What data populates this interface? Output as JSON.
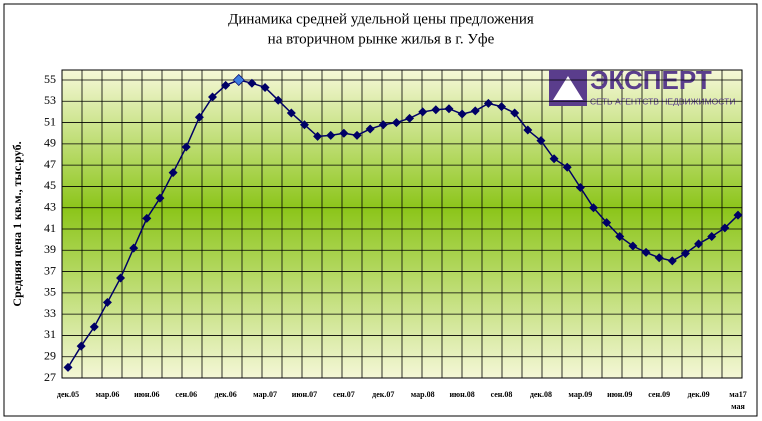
{
  "chart_data": {
    "type": "line",
    "title": [
      "Динамика средней удельной цены предложения",
      "на вторичном рынке жилья в г. Уфе"
    ],
    "y_label": "Средняя цена 1 кв.м., тыс.руб.",
    "logo": {
      "name": "ЭКСПЕРТ",
      "tagline": "СЕТЬ АГЕНТСТВ НЕДВИЖИМОСТИ"
    },
    "categories": [
      "дек.05",
      null,
      null,
      "мар.06",
      null,
      null,
      "июн.06",
      null,
      null,
      "сен.06",
      null,
      null,
      "дек.06",
      null,
      null,
      "мар.07",
      null,
      null,
      "июн.07",
      null,
      null,
      "сен.07",
      null,
      null,
      "дек.07",
      null,
      null,
      "мар.08",
      null,
      null,
      "июн.08",
      null,
      null,
      "сен.08",
      null,
      null,
      "дек.08",
      null,
      null,
      "мар.09",
      null,
      null,
      "июн.09",
      null,
      null,
      "сен.09",
      null,
      null,
      "дек.09",
      null,
      null,
      "ма17 мая"
    ],
    "series": [
      {
        "name": "Средняя цена",
        "color": "#000066",
        "highlight_index": 13,
        "highlight_color": "#3d7de0",
        "values": [
          28,
          30,
          31.8,
          34.1,
          36.4,
          39.2,
          42,
          43.9,
          46.3,
          48.7,
          51.5,
          53.4,
          54.5,
          55,
          54.7,
          54.3,
          53.1,
          51.9,
          50.8,
          49.7,
          49.8,
          50,
          49.8,
          50.4,
          50.8,
          51,
          51.4,
          52,
          52.2,
          52.3,
          51.8,
          52.1,
          52.8,
          52.5,
          51.9,
          50.3,
          49.3,
          47.6,
          46.8,
          44.9,
          43,
          41.6,
          40.3,
          39.4,
          38.8,
          38.3,
          38,
          38.7,
          39.6,
          40.3,
          41.1,
          42.3
        ]
      }
    ],
    "ylim": [
      27,
      55
    ],
    "yticks": [
      27,
      29,
      31,
      33,
      35,
      37,
      39,
      41,
      43,
      45,
      47,
      49,
      51,
      53,
      55
    ],
    "grid": true
  }
}
